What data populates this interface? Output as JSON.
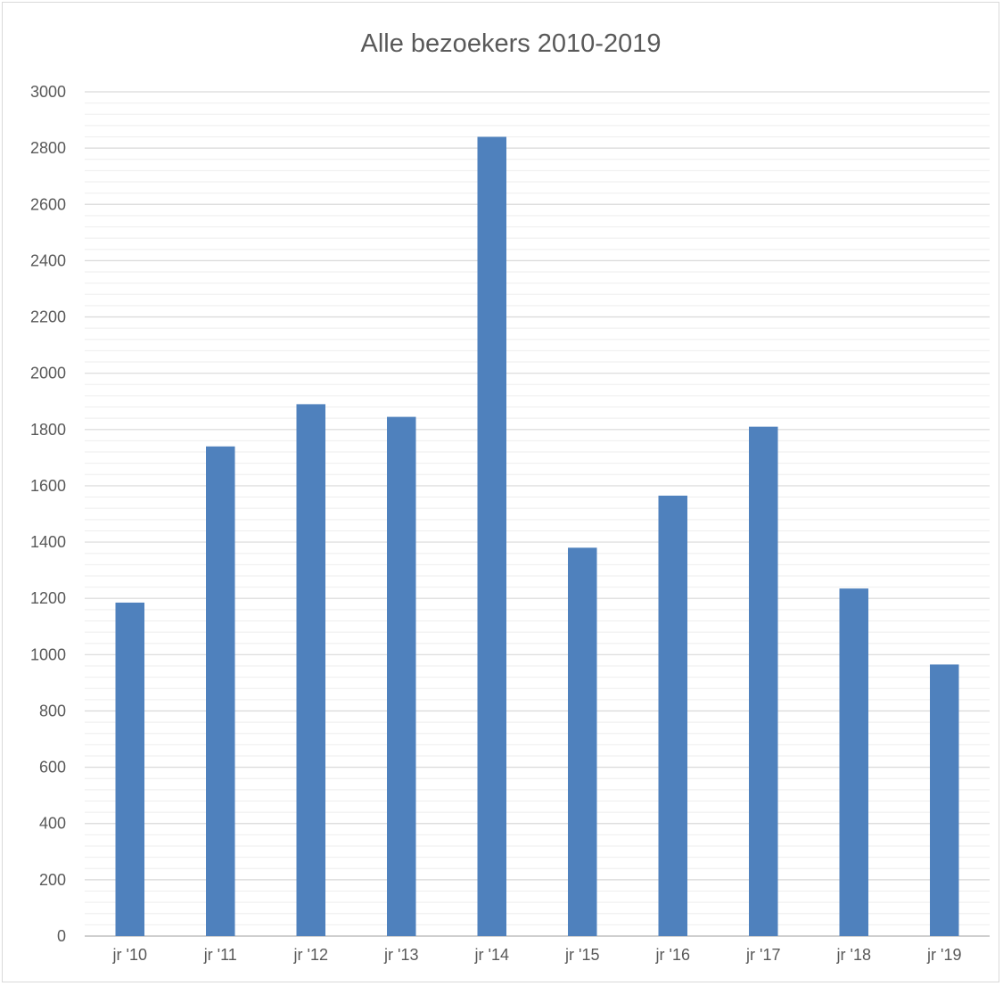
{
  "chart_data": {
    "type": "bar",
    "title": "Alle bezoekers 2010-2019",
    "xlabel": "",
    "ylabel": "",
    "categories": [
      "jr '10",
      "jr '11",
      "jr '12",
      "jr '13",
      "jr '14",
      "jr '15",
      "jr '16",
      "jr '17",
      "jr '18",
      "jr '19"
    ],
    "values": [
      1185,
      1740,
      1890,
      1845,
      2840,
      1380,
      1565,
      1810,
      1235,
      965
    ],
    "ylim": [
      0,
      3000
    ],
    "yticks": [
      0,
      200,
      400,
      600,
      800,
      1000,
      1200,
      1400,
      1600,
      1800,
      2000,
      2200,
      2400,
      2600,
      2800,
      3000
    ],
    "grid": true,
    "legend": "none",
    "colors": {
      "bar": "#4f81bd",
      "major_grid": "#d9d9d9",
      "minor_grid": "#eeeeee",
      "axis": "#bfbfbf",
      "text": "#595959"
    }
  }
}
